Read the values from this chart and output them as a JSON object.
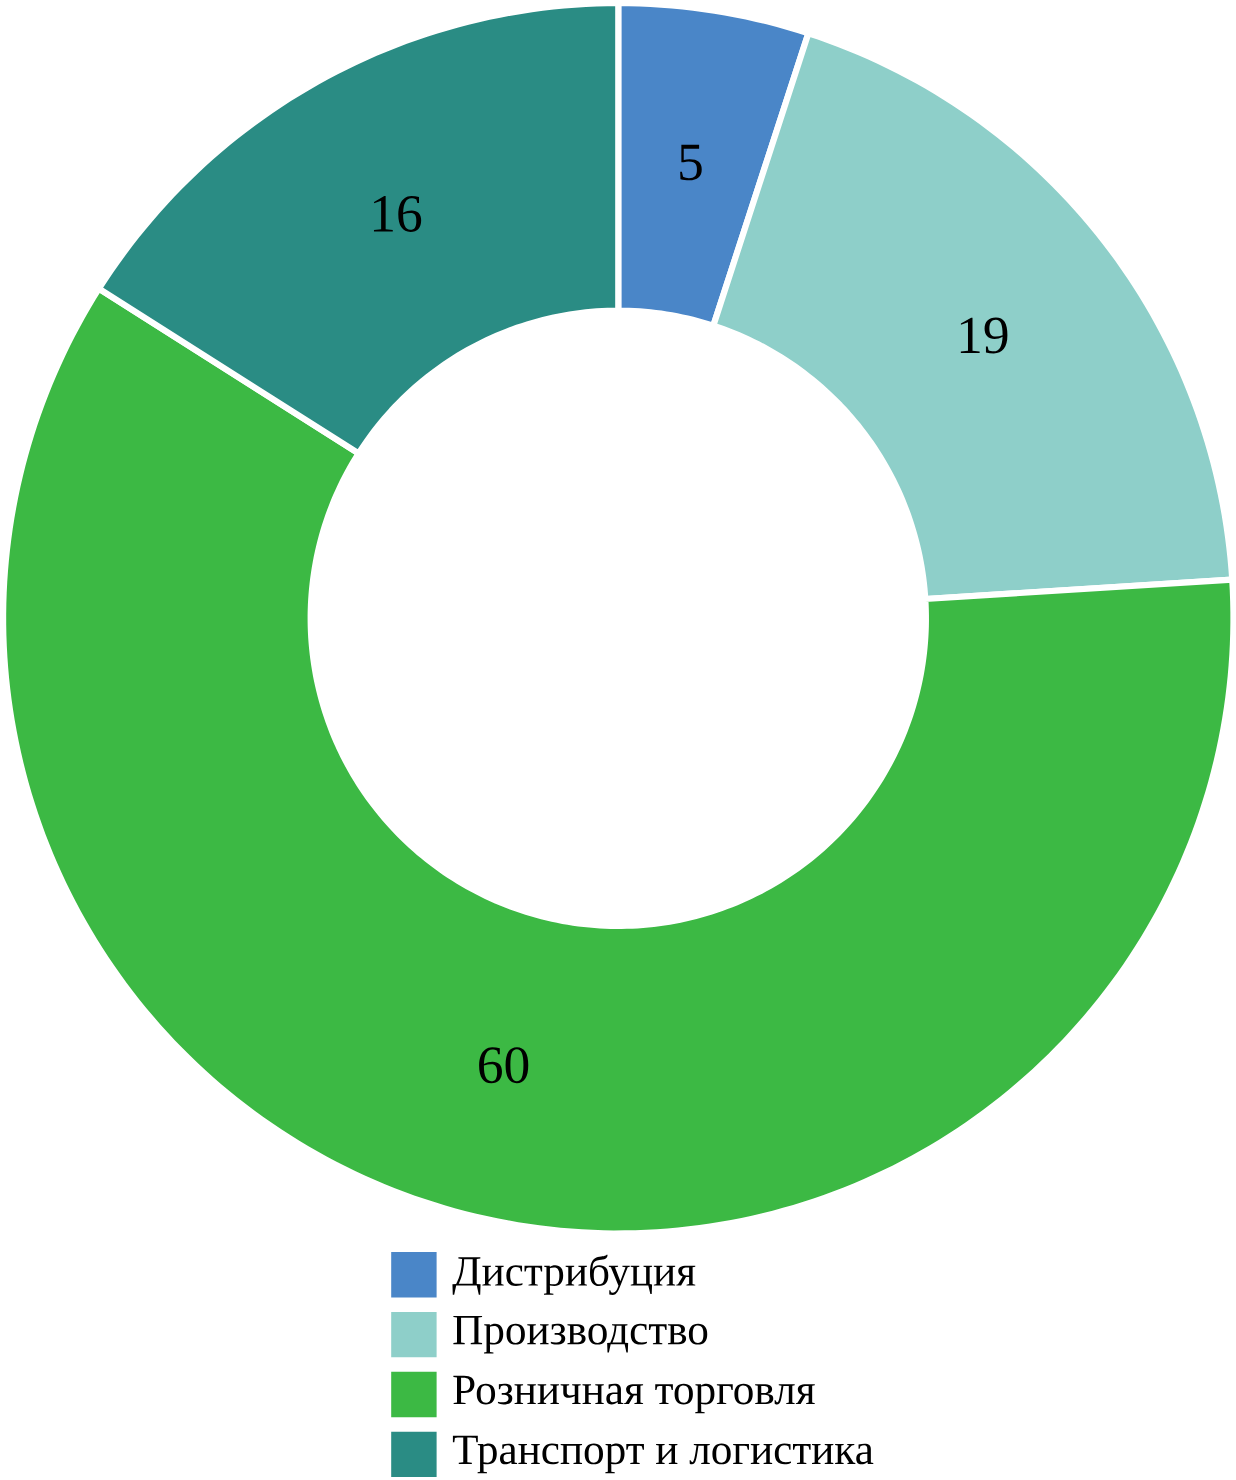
{
  "chart_data": {
    "type": "donut",
    "categories": [
      "Дистрибуция",
      "Производство",
      "Розничная торговля",
      "Транспорт и логистика"
    ],
    "values": [
      5,
      19,
      60,
      16
    ],
    "colors": [
      "#4a86c8",
      "#8ecfc9",
      "#3cb944",
      "#2a8c84"
    ],
    "data_labels": true,
    "legend": "bottom"
  }
}
